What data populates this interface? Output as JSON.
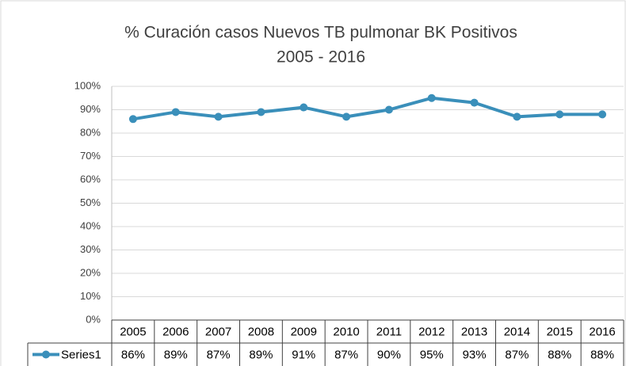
{
  "chart_data": {
    "type": "line",
    "title": "% Curación casos Nuevos TB pulmonar BK Positivos",
    "subtitle": "2005 - 2016",
    "categories": [
      "2005",
      "2006",
      "2007",
      "2008",
      "2009",
      "2010",
      "2011",
      "2012",
      "2013",
      "2014",
      "2015",
      "2016"
    ],
    "series": [
      {
        "name": "Series1",
        "color": "#3a8fba",
        "values": [
          86,
          89,
          87,
          89,
          91,
          87,
          90,
          95,
          93,
          87,
          88,
          88
        ],
        "value_labels": [
          "86%",
          "89%",
          "87%",
          "89%",
          "91%",
          "87%",
          "90%",
          "95%",
          "93%",
          "87%",
          "88%",
          "88%"
        ]
      }
    ],
    "ylim": [
      0,
      100
    ],
    "yticks": [
      {
        "value": 0,
        "label": "0%"
      },
      {
        "value": 10,
        "label": "10%"
      },
      {
        "value": 20,
        "label": "20%"
      },
      {
        "value": 30,
        "label": "30%"
      },
      {
        "value": 40,
        "label": "40%"
      },
      {
        "value": 50,
        "label": "50%"
      },
      {
        "value": 60,
        "label": "60%"
      },
      {
        "value": 70,
        "label": "70%"
      },
      {
        "value": 80,
        "label": "80%"
      },
      {
        "value": 90,
        "label": "90%"
      },
      {
        "value": 100,
        "label": "100%"
      }
    ],
    "grid": true
  }
}
